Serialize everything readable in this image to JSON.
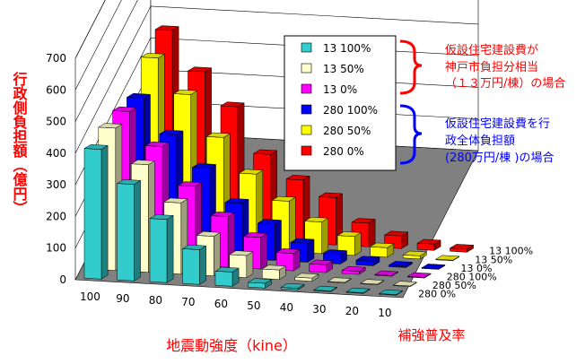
{
  "chart_data": {
    "type": "bar",
    "subtype": "3d-column",
    "ylabel": "行政側負担額（億円）",
    "xlabel": "地震動強度（kine）",
    "depth_label": "補強普及率",
    "ylim": [
      0,
      700
    ],
    "yticks": [
      "0",
      "100",
      "200",
      "300",
      "400",
      "500",
      "600",
      "700"
    ],
    "categories": [
      "100",
      "90",
      "80",
      "70",
      "60",
      "50",
      "40",
      "30",
      "20",
      "10"
    ],
    "depth_tick_labels": [
      "13 100%",
      "13  50%",
      "13   0%",
      "280 100%",
      "280  50%",
      "280   0%"
    ],
    "grid": true,
    "legend_position": "top-right",
    "series": [
      {
        "name": "13 100%",
        "color": "#33cccc",
        "values": [
          410,
          305,
          200,
          110,
          45,
          15,
          5,
          0,
          0,
          0
        ]
      },
      {
        "name": "13  50%",
        "color": "#ffffcc",
        "values": [
          450,
          340,
          225,
          125,
          70,
          30,
          10,
          0,
          0,
          0
        ]
      },
      {
        "name": "13   0%",
        "color": "#ff00ff",
        "values": [
          475,
          370,
          250,
          160,
          100,
          55,
          25,
          10,
          0,
          0
        ]
      },
      {
        "name": "280 100%",
        "color": "#0000ff",
        "values": [
          490,
          380,
          280,
          175,
          115,
          60,
          30,
          15,
          5,
          0
        ]
      },
      {
        "name": "280  50%",
        "color": "#ffff00",
        "values": [
          590,
          480,
          350,
          240,
          160,
          100,
          60,
          30,
          10,
          0
        ]
      },
      {
        "name": "280   0%",
        "color": "#ff0000",
        "values": [
          650,
          525,
          420,
          275,
          200,
          150,
          75,
          40,
          20,
          10
        ]
      }
    ],
    "annotations": {
      "top_lines": [
        "仮設住宅建設費が",
        "神戸市負担分相当",
        "（１３万円/棟）の場合"
      ],
      "top_color": "#ff0000",
      "bottom_lines": [
        "仮設住宅建設費を行",
        "政全体負担額",
        "(280万円/棟 )の場合"
      ],
      "bottom_color": "#0000ff"
    }
  }
}
